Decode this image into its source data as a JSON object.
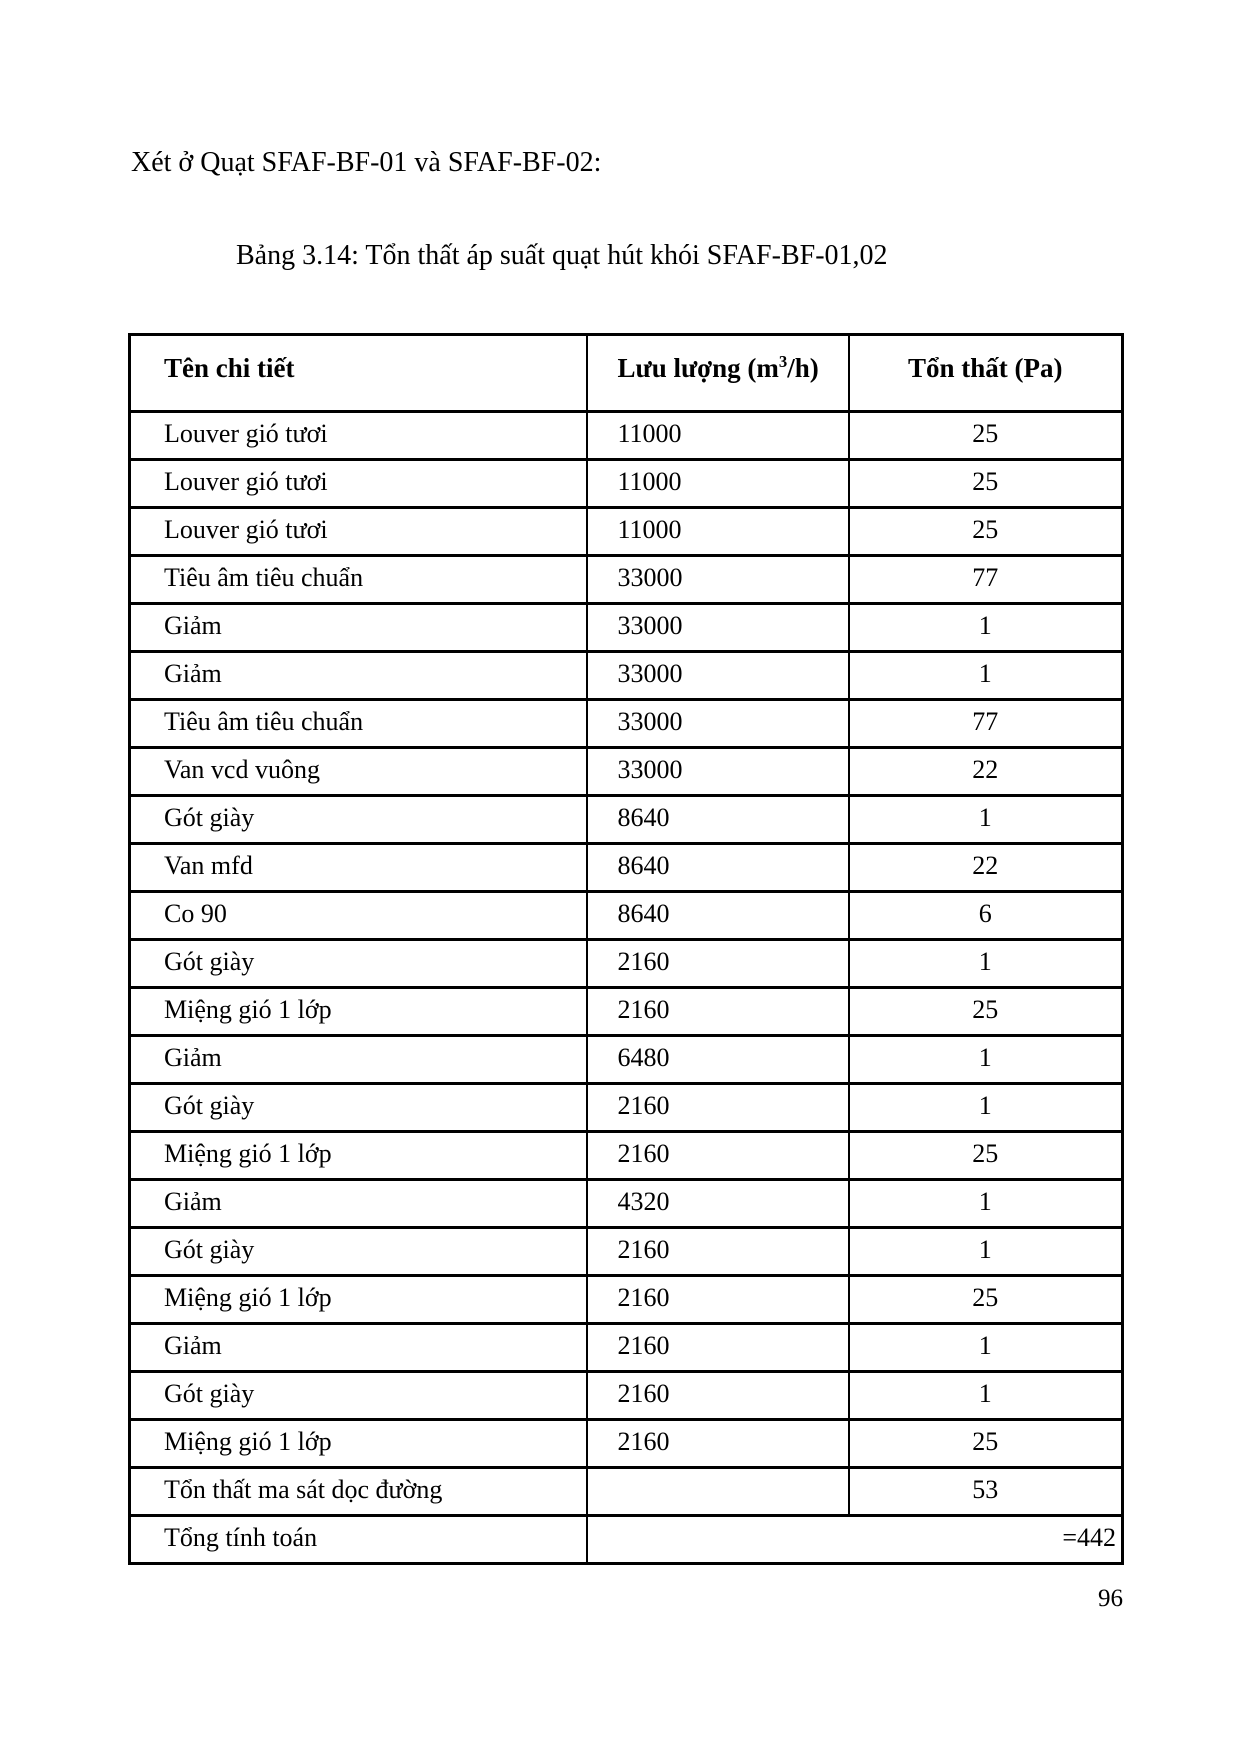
{
  "page": {
    "heading": "Xét ở Quạt SFAF-BF-01 và SFAF-BF-02:",
    "caption": "Bảng 3.14: Tổn thất áp suất quạt hút khói SFAF-BF-01,02",
    "page_number": "96"
  },
  "table": {
    "headers": {
      "name": "Tên chi tiết",
      "flow_prefix": "Lưu lượng (m",
      "flow_sup": "3",
      "flow_suffix": "/h)",
      "loss": "Tổn thất (Pa)"
    },
    "rows": [
      {
        "name": "Louver gió tươi",
        "flow": "11000",
        "loss": "25"
      },
      {
        "name": "Louver gió tươi",
        "flow": "11000",
        "loss": "25"
      },
      {
        "name": "Louver gió tươi",
        "flow": "11000",
        "loss": "25"
      },
      {
        "name": "Tiêu âm tiêu chuẩn",
        "flow": "33000",
        "loss": "77"
      },
      {
        "name": "Giảm",
        "flow": "33000",
        "loss": "1"
      },
      {
        "name": "Giảm",
        "flow": "33000",
        "loss": "1"
      },
      {
        "name": "Tiêu âm tiêu chuẩn",
        "flow": "33000",
        "loss": "77"
      },
      {
        "name": "Van vcd vuông",
        "flow": "33000",
        "loss": "22"
      },
      {
        "name": "Gót giày",
        "flow": "8640",
        "loss": "1"
      },
      {
        "name": "Van mfd",
        "flow": "8640",
        "loss": "22"
      },
      {
        "name": "Co 90",
        "flow": "8640",
        "loss": "6"
      },
      {
        "name": "Gót giày",
        "flow": "2160",
        "loss": "1"
      },
      {
        "name": "Miệng gió 1 lớp",
        "flow": "2160",
        "loss": "25"
      },
      {
        "name": "Giảm",
        "flow": "6480",
        "loss": "1"
      },
      {
        "name": "Gót giày",
        "flow": "2160",
        "loss": "1"
      },
      {
        "name": "Miệng gió 1 lớp",
        "flow": "2160",
        "loss": "25"
      },
      {
        "name": "Giảm",
        "flow": "4320",
        "loss": "1"
      },
      {
        "name": "Gót giày",
        "flow": "2160",
        "loss": "1"
      },
      {
        "name": "Miệng gió 1 lớp",
        "flow": "2160",
        "loss": "25"
      },
      {
        "name": "Giảm",
        "flow": "2160",
        "loss": "1"
      },
      {
        "name": "Gót giày",
        "flow": "2160",
        "loss": "1"
      },
      {
        "name": "Miệng gió 1 lớp",
        "flow": "2160",
        "loss": "25"
      },
      {
        "name": "Tổn thất ma sát dọc đường",
        "flow": "",
        "loss": "53"
      }
    ],
    "total_row": {
      "label": "Tổng tính toán",
      "value": "=442"
    }
  }
}
